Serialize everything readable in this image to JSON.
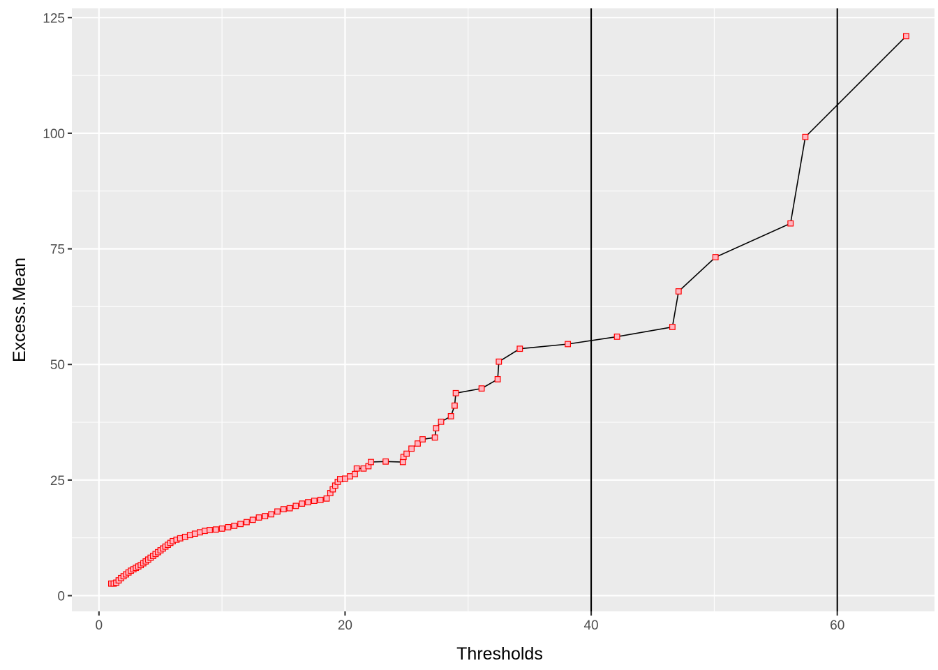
{
  "chart_data": {
    "type": "line",
    "title": "",
    "xlabel": "Thresholds",
    "ylabel": "Excess.Mean",
    "xlim": [
      -2.2,
      67.9
    ],
    "ylim": [
      -3.4,
      127.0
    ],
    "x_ticks": [
      0,
      20,
      40,
      60
    ],
    "y_ticks": [
      0,
      25,
      50,
      75,
      100,
      125
    ],
    "x_tick_labels": [
      "0",
      "20",
      "40",
      "60"
    ],
    "y_tick_labels": [
      "0",
      "25",
      "50",
      "75",
      "100",
      "125"
    ],
    "grid": true,
    "legend": "none",
    "vertical_lines": [
      40,
      60
    ],
    "colors": {
      "panel_background": "#EBEBEB",
      "grid": "#FFFFFF",
      "line": "#000000",
      "point_fill": "#FFB6C1",
      "point_outline": "#FF0000",
      "vertical_lines": "#000000"
    },
    "series": [
      {
        "x": [
          1.0,
          1.2,
          1.4,
          1.6,
          1.8,
          2.0,
          2.2,
          2.4,
          2.6,
          2.8,
          3.0,
          3.2,
          3.4,
          3.6,
          3.8,
          4.0,
          4.2,
          4.4,
          4.6,
          4.8,
          5.0,
          5.2,
          5.4,
          5.6,
          5.8,
          6.0,
          6.3,
          6.6,
          7.0,
          7.4,
          7.8,
          8.2,
          8.6,
          9.0,
          9.5,
          10.0,
          10.5,
          11.0,
          11.5,
          12.0,
          12.5,
          13.0,
          13.5,
          14.0,
          14.5,
          15.0,
          15.5,
          16.0,
          16.5,
          17.0,
          17.5,
          18.0,
          18.5,
          18.8,
          19.0,
          19.2,
          19.4,
          19.6,
          20.0,
          20.4,
          20.8,
          20.95,
          21.5,
          21.9,
          22.1,
          23.3,
          24.7,
          24.75,
          25.0,
          25.4,
          25.9,
          26.3,
          27.3,
          27.4,
          27.8,
          28.6,
          28.9,
          29.0,
          31.1,
          32.4,
          32.5,
          34.2,
          38.1,
          42.1,
          46.6,
          47.1,
          50.1,
          56.2,
          57.4,
          65.6
        ],
        "y": [
          2.6,
          2.6,
          2.8,
          3.3,
          3.8,
          4.2,
          4.6,
          5.0,
          5.4,
          5.7,
          6.0,
          6.3,
          6.6,
          7.0,
          7.4,
          7.8,
          8.2,
          8.6,
          9.0,
          9.4,
          9.8,
          10.2,
          10.6,
          11.0,
          11.4,
          11.8,
          12.1,
          12.4,
          12.7,
          13.1,
          13.4,
          13.7,
          14.0,
          14.2,
          14.3,
          14.5,
          14.8,
          15.1,
          15.5,
          15.9,
          16.4,
          16.9,
          17.2,
          17.6,
          18.2,
          18.7,
          18.9,
          19.4,
          19.9,
          20.2,
          20.5,
          20.7,
          21.0,
          22.2,
          23.0,
          23.8,
          24.6,
          25.2,
          25.3,
          25.8,
          26.3,
          27.5,
          27.5,
          28.0,
          28.9,
          29.0,
          28.9,
          30.0,
          30.7,
          31.8,
          32.9,
          33.8,
          34.2,
          36.2,
          37.6,
          38.8,
          41.1,
          43.8,
          44.8,
          46.8,
          50.6,
          53.4,
          54.4,
          56.0,
          58.1,
          65.8,
          73.2,
          80.5,
          99.2,
          121.0
        ]
      }
    ]
  }
}
